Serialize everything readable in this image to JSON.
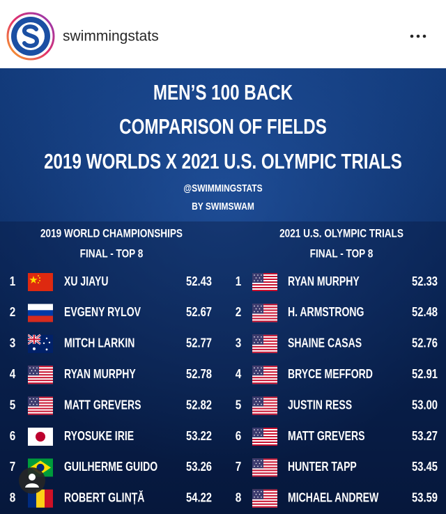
{
  "header": {
    "username": "swimmingstats"
  },
  "post": {
    "title_lines": [
      "MEN’S 100 BACK",
      "COMPARISON OF FIELDS",
      "2019 WORLDS X 2021 U.S. OLYMPIC TRIALS"
    ],
    "credit_lines": [
      "@SWIMMINGSTATS",
      "BY SWIMSWAM"
    ],
    "tables": [
      {
        "heading": "2019 WORLD CHAMPIONSHIPS",
        "subheading": "FINAL - TOP 8",
        "rows": [
          [
            "1",
            "XU JIAYU",
            "52.43"
          ],
          [
            "2",
            "EVGENY RYLOV",
            "52.67"
          ],
          [
            "3",
            "MITCH LARKIN",
            "52.77"
          ],
          [
            "4",
            "RYAN MURPHY",
            "52.78"
          ],
          [
            "5",
            "MATT GREVERS",
            "52.82"
          ],
          [
            "6",
            "RYOSUKE IRIE",
            "53.22"
          ],
          [
            "7",
            "GUILHERME GUIDO",
            "53.26"
          ],
          [
            "8",
            "ROBERT GLINȚĂ",
            "54.22"
          ]
        ]
      },
      {
        "heading": "2021 U.S. OLYMPIC TRIALS",
        "subheading": "FINAL - TOP 8",
        "rows": [
          [
            "1",
            "RYAN MURPHY",
            "52.33"
          ],
          [
            "2",
            "H. ARMSTRONG",
            "52.48"
          ],
          [
            "3",
            "SHAINE CASAS",
            "52.76"
          ],
          [
            "4",
            "BRYCE MEFFORD",
            "52.91"
          ],
          [
            "5",
            "JUSTIN RESS",
            "53.00"
          ],
          [
            "6",
            "MATT GREVERS",
            "53.27"
          ],
          [
            "7",
            "HUNTER TAPP",
            "53.45"
          ],
          [
            "8",
            "MICHAEL ANDREW",
            "53.59"
          ]
        ]
      }
    ]
  }
}
